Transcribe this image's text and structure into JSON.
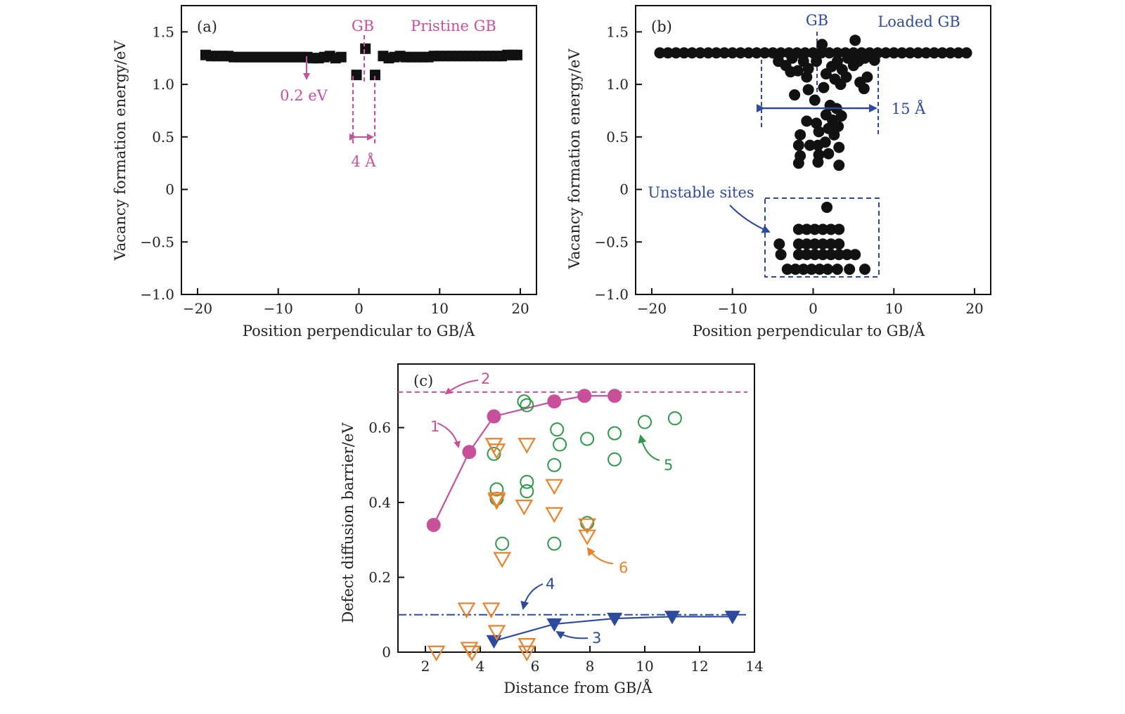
{
  "colors": {
    "black": "#111111",
    "magenta": "#c8509a",
    "blue": "#2e4a9e",
    "green": "#2c9a48",
    "orange": "#e8822c"
  },
  "chart_data": [
    {
      "id": "a",
      "type": "scatter",
      "panel_label": "(a)",
      "xlabel": "Position perpendicular to GB/Å",
      "ylabel": "Vacancy formation energy/eV",
      "xlim": [
        -22,
        22
      ],
      "ylim": [
        -1.0,
        1.75
      ],
      "xticks": [
        -20,
        -10,
        0,
        10,
        20
      ],
      "xtick_labels": [
        "−20",
        "−10",
        "0",
        "10",
        "20"
      ],
      "yticks": [
        -1.0,
        -0.5,
        0,
        0.5,
        1.0,
        1.5
      ],
      "ytick_labels": [
        "−1.0",
        "−0.5",
        "0",
        "0.5",
        "1.0",
        "1.5"
      ],
      "marker": "square",
      "annotations": {
        "legend_text": "Pristine GB",
        "gb_label": "GB",
        "drop_label": "0.2 eV",
        "width_label": "4 Å"
      },
      "points": [
        [
          -19.0,
          1.28
        ],
        [
          -18.3,
          1.27
        ],
        [
          -17.6,
          1.27
        ],
        [
          -16.9,
          1.27
        ],
        [
          -16.2,
          1.27
        ],
        [
          -15.5,
          1.26
        ],
        [
          -14.8,
          1.26
        ],
        [
          -14.1,
          1.26
        ],
        [
          -13.4,
          1.26
        ],
        [
          -12.7,
          1.26
        ],
        [
          -12.0,
          1.26
        ],
        [
          -11.3,
          1.26
        ],
        [
          -10.6,
          1.26
        ],
        [
          -9.9,
          1.26
        ],
        [
          -9.2,
          1.26
        ],
        [
          -8.5,
          1.26
        ],
        [
          -7.8,
          1.26
        ],
        [
          -7.1,
          1.26
        ],
        [
          -6.4,
          1.26
        ],
        [
          -5.7,
          1.25
        ],
        [
          -5.0,
          1.25
        ],
        [
          -4.3,
          1.26
        ],
        [
          -3.6,
          1.27
        ],
        [
          -2.9,
          1.25
        ],
        [
          -2.2,
          1.26
        ],
        [
          -0.3,
          1.09
        ],
        [
          0.8,
          1.34
        ],
        [
          2.0,
          1.09
        ],
        [
          3.0,
          1.27
        ],
        [
          3.7,
          1.25
        ],
        [
          4.4,
          1.26
        ],
        [
          5.1,
          1.27
        ],
        [
          5.8,
          1.26
        ],
        [
          6.5,
          1.26
        ],
        [
          7.2,
          1.26
        ],
        [
          7.9,
          1.26
        ],
        [
          8.6,
          1.26
        ],
        [
          9.3,
          1.27
        ],
        [
          10.0,
          1.27
        ],
        [
          10.7,
          1.27
        ],
        [
          11.4,
          1.27
        ],
        [
          12.1,
          1.27
        ],
        [
          12.8,
          1.27
        ],
        [
          13.5,
          1.27
        ],
        [
          14.2,
          1.27
        ],
        [
          14.9,
          1.27
        ],
        [
          15.6,
          1.27
        ],
        [
          16.3,
          1.27
        ],
        [
          17.0,
          1.27
        ],
        [
          17.7,
          1.27
        ],
        [
          18.4,
          1.28
        ],
        [
          19.1,
          1.28
        ],
        [
          19.6,
          1.28
        ]
      ]
    },
    {
      "id": "b",
      "type": "scatter",
      "panel_label": "(b)",
      "xlabel": "Position perpendicular to GB/Å",
      "ylabel": "Vacancy formation energy/eV",
      "xlim": [
        -22,
        22
      ],
      "ylim": [
        -1.0,
        1.75
      ],
      "xticks": [
        -20,
        -10,
        0,
        10,
        20
      ],
      "xtick_labels": [
        "−20",
        "−10",
        "0",
        "10",
        "20"
      ],
      "yticks": [
        -1.0,
        -0.5,
        0,
        0.5,
        1.0,
        1.5
      ],
      "ytick_labels": [
        "−1.0",
        "−0.5",
        "0",
        "0.5",
        "1.0",
        "1.5"
      ],
      "marker": "circle",
      "annotations": {
        "legend_text": "Loaded GB",
        "gb_label": "GB",
        "width_label": "15 Å",
        "unstable_label": "Unstable sites"
      },
      "points": [
        [
          -19.0,
          1.3
        ],
        [
          -18.0,
          1.3
        ],
        [
          -17.0,
          1.3
        ],
        [
          -16.0,
          1.3
        ],
        [
          -15.0,
          1.3
        ],
        [
          -14.0,
          1.3
        ],
        [
          -13.0,
          1.3
        ],
        [
          -12.0,
          1.3
        ],
        [
          -11.0,
          1.3
        ],
        [
          -10.0,
          1.3
        ],
        [
          -9.0,
          1.3
        ],
        [
          -8.0,
          1.3
        ],
        [
          -7.0,
          1.3
        ],
        [
          -6.0,
          1.3
        ],
        [
          -5.0,
          1.3
        ],
        [
          -4.0,
          1.3
        ],
        [
          -3.0,
          1.3
        ],
        [
          -2.0,
          1.3
        ],
        [
          -1.0,
          1.3
        ],
        [
          0.0,
          1.3
        ],
        [
          1.0,
          1.3
        ],
        [
          2.0,
          1.3
        ],
        [
          3.0,
          1.3
        ],
        [
          4.0,
          1.3
        ],
        [
          5.0,
          1.3
        ],
        [
          6.0,
          1.3
        ],
        [
          7.0,
          1.3
        ],
        [
          8.0,
          1.3
        ],
        [
          9.0,
          1.3
        ],
        [
          10.0,
          1.3
        ],
        [
          11.0,
          1.3
        ],
        [
          12.0,
          1.3
        ],
        [
          13.0,
          1.3
        ],
        [
          14.0,
          1.3
        ],
        [
          15.0,
          1.3
        ],
        [
          16.0,
          1.3
        ],
        [
          17.0,
          1.3
        ],
        [
          18.0,
          1.3
        ],
        [
          19.0,
          1.3
        ],
        [
          -4.3,
          1.22
        ],
        [
          -3.4,
          1.18
        ],
        [
          -2.6,
          1.25
        ],
        [
          -1.9,
          1.13
        ],
        [
          -1.2,
          1.22
        ],
        [
          -0.6,
          1.15
        ],
        [
          0.4,
          1.22
        ],
        [
          1.1,
          1.38
        ],
        [
          2.3,
          1.17
        ],
        [
          3.0,
          1.22
        ],
        [
          3.6,
          1.14
        ],
        [
          4.3,
          1.25
        ],
        [
          5.0,
          1.18
        ],
        [
          5.6,
          1.22
        ],
        [
          6.4,
          1.25
        ],
        [
          7.6,
          1.23
        ],
        [
          -2.8,
          1.12
        ],
        [
          -0.8,
          1.07
        ],
        [
          1.6,
          1.1
        ],
        [
          2.7,
          1.05
        ],
        [
          3.4,
          1.0
        ],
        [
          4.1,
          1.07
        ],
        [
          5.2,
          1.42
        ],
        [
          5.8,
          1.02
        ],
        [
          6.3,
          0.96
        ],
        [
          6.7,
          1.07
        ],
        [
          -0.6,
          0.95
        ],
        [
          0.2,
          0.85
        ],
        [
          1.3,
          0.97
        ],
        [
          2.1,
          0.8
        ],
        [
          2.9,
          0.77
        ],
        [
          3.5,
          0.7
        ],
        [
          -2.3,
          0.9
        ],
        [
          -0.8,
          0.65
        ],
        [
          0.4,
          0.63
        ],
        [
          1.6,
          0.71
        ],
        [
          2.4,
          0.66
        ],
        [
          3.1,
          0.6
        ],
        [
          -1.6,
          0.52
        ],
        [
          0.7,
          0.55
        ],
        [
          1.9,
          0.58
        ],
        [
          2.6,
          0.52
        ],
        [
          -1.8,
          0.42
        ],
        [
          -0.4,
          0.42
        ],
        [
          0.6,
          0.42
        ],
        [
          1.5,
          0.45
        ],
        [
          3.2,
          0.4
        ],
        [
          -1.6,
          0.32
        ],
        [
          0.7,
          0.33
        ],
        [
          1.9,
          0.34
        ],
        [
          -1.8,
          0.25
        ],
        [
          0.6,
          0.26
        ],
        [
          3.2,
          0.23
        ],
        [
          1.7,
          -0.17
        ],
        [
          -1.8,
          -0.38
        ],
        [
          -0.8,
          -0.38
        ],
        [
          0.2,
          -0.38
        ],
        [
          1.2,
          -0.38
        ],
        [
          2.2,
          -0.38
        ],
        [
          3.2,
          -0.38
        ],
        [
          -4.2,
          -0.52
        ],
        [
          -1.8,
          -0.52
        ],
        [
          -0.8,
          -0.52
        ],
        [
          0.2,
          -0.52
        ],
        [
          1.2,
          -0.52
        ],
        [
          2.2,
          -0.52
        ],
        [
          3.2,
          -0.52
        ],
        [
          -4.0,
          -0.62
        ],
        [
          -1.8,
          -0.62
        ],
        [
          -0.8,
          -0.62
        ],
        [
          0.2,
          -0.62
        ],
        [
          1.2,
          -0.62
        ],
        [
          2.2,
          -0.62
        ],
        [
          3.2,
          -0.62
        ],
        [
          4.2,
          -0.62
        ],
        [
          5.2,
          -0.62
        ],
        [
          -3.2,
          -0.76
        ],
        [
          -2.2,
          -0.76
        ],
        [
          -1.2,
          -0.76
        ],
        [
          -0.2,
          -0.76
        ],
        [
          0.8,
          -0.76
        ],
        [
          1.8,
          -0.76
        ],
        [
          3.0,
          -0.76
        ],
        [
          4.5,
          -0.76
        ],
        [
          6.4,
          -0.76
        ]
      ]
    },
    {
      "id": "c",
      "type": "scatter",
      "panel_label": "(c)",
      "xlabel": "Distance from GB/Å",
      "ylabel": "Defect diffusion barrier/eV",
      "xlim": [
        1.0,
        14.0
      ],
      "ylim": [
        0,
        0.77
      ],
      "xticks": [
        2,
        4,
        6,
        8,
        10,
        12,
        14
      ],
      "xtick_labels": [
        "2",
        "4",
        "6",
        "8",
        "10",
        "12",
        "14"
      ],
      "yticks": [
        0,
        0.2,
        0.4,
        0.6
      ],
      "ytick_labels": [
        "0",
        "0.2",
        "0.4",
        "0.6"
      ],
      "reference_lines": [
        {
          "y": 0.695,
          "color": "magenta",
          "style": "dashed"
        },
        {
          "y": 0.1,
          "color": "blue",
          "style": "dash-dot"
        }
      ],
      "series": [
        {
          "marker": "filled-circle",
          "color": "magenta",
          "line": true,
          "x": [
            2.3,
            3.6,
            4.5,
            6.7,
            7.8,
            8.9
          ],
          "y": [
            0.34,
            0.535,
            0.63,
            0.67,
            0.685,
            0.685
          ]
        },
        {
          "marker": "filled-down-triangle",
          "color": "blue",
          "line": true,
          "x": [
            4.5,
            6.7,
            8.9,
            11.0,
            13.2
          ],
          "y": [
            0.03,
            0.075,
            0.09,
            0.095,
            0.095
          ]
        },
        {
          "marker": "open-circle",
          "color": "green",
          "line": false,
          "x": [
            5.6,
            5.7,
            4.5,
            6.8,
            6.9,
            6.7,
            7.9,
            8.9,
            8.9,
            10.0,
            11.1,
            4.6,
            4.6,
            5.7,
            5.7,
            4.8,
            6.7,
            7.9
          ],
          "y": [
            0.67,
            0.66,
            0.53,
            0.595,
            0.555,
            0.5,
            0.57,
            0.585,
            0.515,
            0.615,
            0.625,
            0.435,
            0.41,
            0.455,
            0.43,
            0.29,
            0.29,
            0.345
          ]
        },
        {
          "marker": "open-down-triangle",
          "color": "orange",
          "line": false,
          "x": [
            4.5,
            4.6,
            5.7,
            4.6,
            4.6,
            5.6,
            6.7,
            6.7,
            7.9,
            7.9,
            4.8,
            3.5,
            4.4,
            4.6,
            2.4,
            3.6,
            3.7,
            5.7,
            5.7
          ],
          "y": [
            0.555,
            0.54,
            0.555,
            0.41,
            0.405,
            0.39,
            0.445,
            0.37,
            0.34,
            0.31,
            0.25,
            0.115,
            0.115,
            0.055,
            0.0,
            0.01,
            0.0,
            0.02,
            0.0
          ]
        }
      ],
      "callouts": [
        "1",
        "2",
        "3",
        "4",
        "5",
        "6"
      ]
    }
  ]
}
